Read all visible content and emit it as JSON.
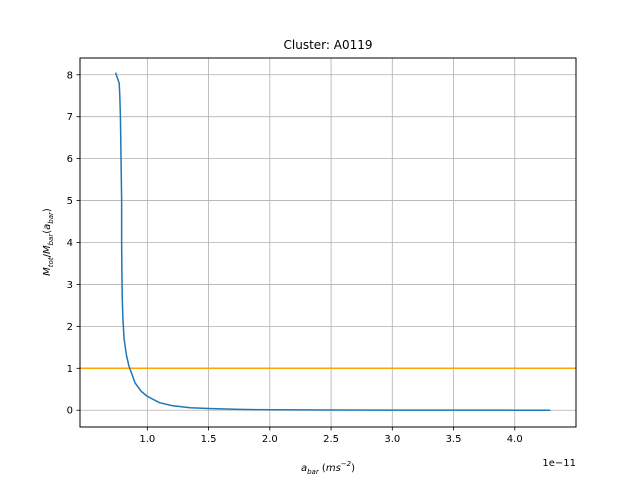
{
  "chart_data": {
    "type": "line",
    "title": "Cluster: A0119",
    "xlabel": {
      "base": "a",
      "sub": "bar",
      "unit_open": " (",
      "unit": "ms",
      "sup": "−2",
      "unit_close": ")"
    },
    "ylabel": {
      "num": "M",
      "num_sub": "tot",
      "slash": "/",
      "den": "M",
      "den_sub": "bar",
      "arg_open": "(",
      "arg": "a",
      "arg_sub": "bar",
      "arg_close": ")"
    },
    "x_offset_label": "1e−11",
    "xlim": [
      0.45,
      4.5
    ],
    "ylim": [
      -0.4,
      8.4
    ],
    "xticks": [
      1.0,
      1.5,
      2.0,
      2.5,
      3.0,
      3.5,
      4.0
    ],
    "xtick_labels": [
      "1.0",
      "1.5",
      "2.0",
      "2.5",
      "3.0",
      "3.5",
      "4.0"
    ],
    "yticks": [
      0,
      1,
      2,
      3,
      4,
      5,
      6,
      7,
      8
    ],
    "ytick_labels": [
      "0",
      "1",
      "2",
      "3",
      "4",
      "5",
      "6",
      "7",
      "8"
    ],
    "grid": true,
    "series": [
      {
        "color": "#1f77b4",
        "x": [
          0.74,
          0.77,
          0.775,
          0.78,
          0.785,
          0.79,
          0.79,
          0.792,
          0.795,
          0.8,
          0.81,
          0.83,
          0.85,
          0.875,
          0.9,
          0.95,
          1.0,
          1.1,
          1.2,
          1.35,
          1.5,
          1.75,
          2.0,
          2.5,
          3.0,
          3.5,
          4.0,
          4.29
        ],
        "y": [
          8.05,
          7.8,
          7.5,
          7.0,
          6.0,
          5.0,
          4.0,
          3.3,
          2.7,
          2.2,
          1.7,
          1.3,
          1.05,
          0.85,
          0.65,
          0.45,
          0.33,
          0.18,
          0.11,
          0.06,
          0.04,
          0.02,
          0.01,
          0.005,
          0.003,
          0.002,
          0.001,
          0.001
        ]
      }
    ],
    "reference_line": {
      "y": 1,
      "color": "#ffa500"
    }
  }
}
